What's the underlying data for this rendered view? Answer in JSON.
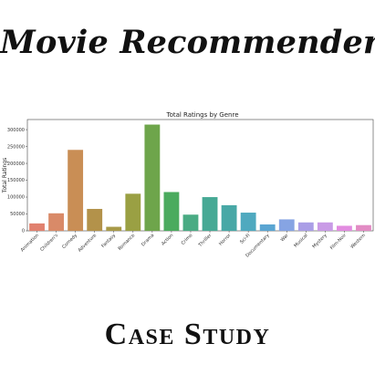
{
  "header": {
    "title": "Movie Recommender"
  },
  "footer": {
    "subtitle": "Case Study"
  },
  "chart_data": {
    "type": "bar",
    "title": "Total Ratings by Genre",
    "xlabel": "",
    "ylabel": "Total Ratings",
    "ylim": [
      0,
      330000
    ],
    "yticks": [
      0,
      50000,
      100000,
      150000,
      200000,
      250000,
      300000
    ],
    "ytick_labels": [
      "0",
      "50000",
      "100000",
      "150000",
      "200000",
      "250000",
      "300000"
    ],
    "grid": false,
    "categories": [
      "Animation",
      "Children's",
      "Comedy",
      "Adventure",
      "Fantasy",
      "Romance",
      "Drama",
      "Action",
      "Crime",
      "Thriller",
      "Horror",
      "Sci-Fi",
      "Documentary",
      "War",
      "Musical",
      "Mystery",
      "Film-Noir",
      "Western"
    ],
    "values": [
      22000,
      52000,
      240000,
      65000,
      12000,
      110000,
      315000,
      115000,
      48000,
      100000,
      76000,
      54000,
      19000,
      34000,
      25000,
      25000,
      15000,
      17000
    ],
    "colors": [
      "#e1816f",
      "#d98a68",
      "#c98e55",
      "#b3924a",
      "#a89a48",
      "#9aa043",
      "#6ea54b",
      "#4bab5e",
      "#4aab84",
      "#47a995",
      "#48a8a6",
      "#4fa9bf",
      "#5aa5d2",
      "#86a4e3",
      "#aa9ee6",
      "#c99be6",
      "#e28ce0",
      "#e28cc4"
    ]
  }
}
